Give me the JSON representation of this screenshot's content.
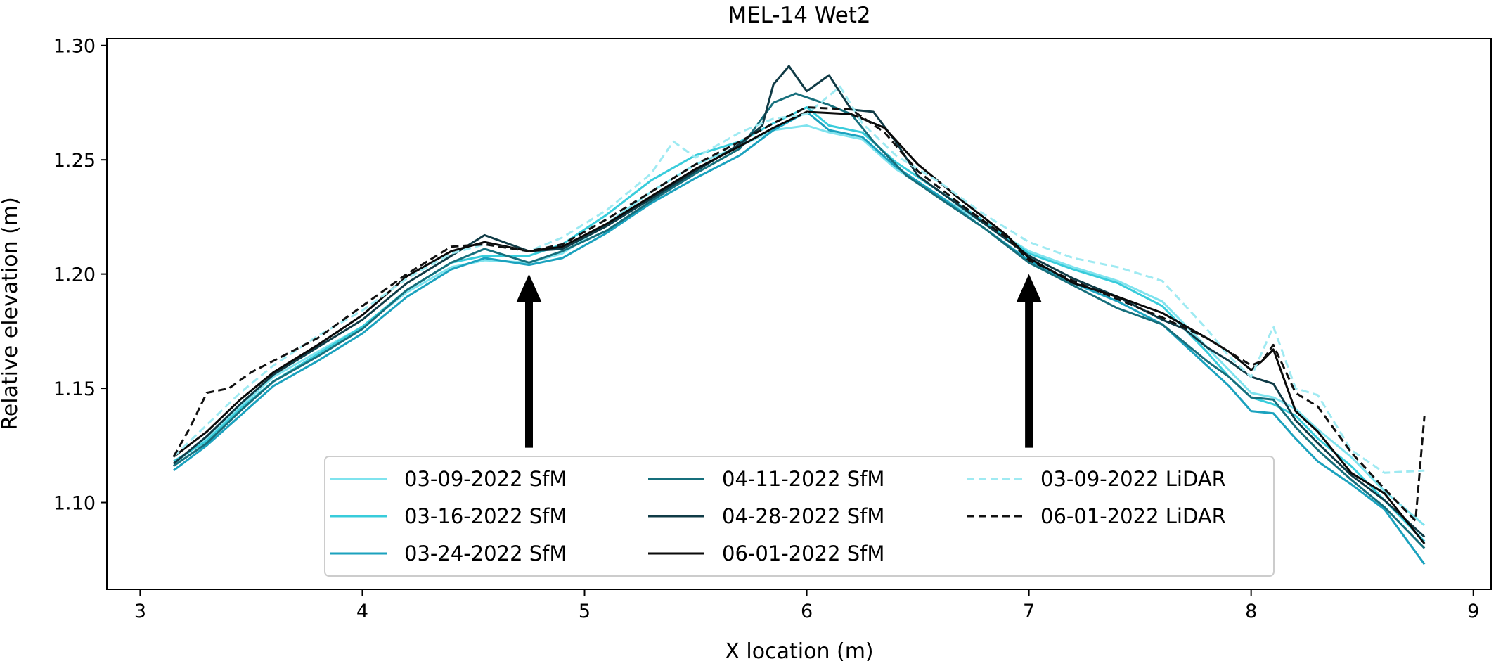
{
  "chart_data": {
    "type": "line",
    "title": "MEL-14 Wet2",
    "xlabel": "X location (m)",
    "ylabel": "Relative elevation (m)",
    "xlim": [
      2.85,
      9.08
    ],
    "ylim": [
      1.062,
      1.303
    ],
    "xticks": [
      3,
      4,
      5,
      6,
      7,
      8,
      9
    ],
    "yticks": [
      1.1,
      1.15,
      1.2,
      1.25,
      1.3
    ],
    "grid": false,
    "legend_position": "lower center",
    "legend_columns": 3,
    "annotations": [
      {
        "type": "arrow",
        "x": 4.75,
        "y_tail": 1.124,
        "y_head": 1.2
      },
      {
        "type": "arrow",
        "x": 7.0,
        "y_tail": 1.124,
        "y_head": 1.2
      }
    ],
    "series": [
      {
        "name": "03-09-2022 SfM",
        "color": "#7fe3ee",
        "style": "solid",
        "points": [
          [
            3.15,
            1.117
          ],
          [
            3.3,
            1.128
          ],
          [
            3.45,
            1.142
          ],
          [
            3.6,
            1.155
          ],
          [
            3.8,
            1.166
          ],
          [
            4.0,
            1.177
          ],
          [
            4.2,
            1.192
          ],
          [
            4.4,
            1.203
          ],
          [
            4.55,
            1.206
          ],
          [
            4.75,
            1.205
          ],
          [
            4.9,
            1.209
          ],
          [
            5.1,
            1.222
          ],
          [
            5.3,
            1.236
          ],
          [
            5.5,
            1.248
          ],
          [
            5.7,
            1.256
          ],
          [
            5.85,
            1.263
          ],
          [
            6.0,
            1.265
          ],
          [
            6.1,
            1.262
          ],
          [
            6.25,
            1.259
          ],
          [
            6.4,
            1.246
          ],
          [
            6.6,
            1.234
          ],
          [
            6.8,
            1.222
          ],
          [
            7.0,
            1.21
          ],
          [
            7.2,
            1.203
          ],
          [
            7.4,
            1.197
          ],
          [
            7.6,
            1.188
          ],
          [
            7.8,
            1.168
          ],
          [
            7.9,
            1.158
          ],
          [
            8.0,
            1.148
          ],
          [
            8.1,
            1.146
          ],
          [
            8.2,
            1.141
          ],
          [
            8.3,
            1.132
          ],
          [
            8.45,
            1.12
          ],
          [
            8.6,
            1.105
          ],
          [
            8.78,
            1.09
          ]
        ]
      },
      {
        "name": "03-16-2022 SfM",
        "color": "#38ccdb",
        "style": "solid",
        "points": [
          [
            3.15,
            1.118
          ],
          [
            3.3,
            1.127
          ],
          [
            3.45,
            1.141
          ],
          [
            3.6,
            1.153
          ],
          [
            3.8,
            1.165
          ],
          [
            4.0,
            1.177
          ],
          [
            4.2,
            1.193
          ],
          [
            4.4,
            1.205
          ],
          [
            4.55,
            1.208
          ],
          [
            4.75,
            1.208
          ],
          [
            4.9,
            1.213
          ],
          [
            5.1,
            1.226
          ],
          [
            5.3,
            1.241
          ],
          [
            5.5,
            1.252
          ],
          [
            5.7,
            1.258
          ],
          [
            5.85,
            1.266
          ],
          [
            6.0,
            1.273
          ],
          [
            6.1,
            1.265
          ],
          [
            6.25,
            1.262
          ],
          [
            6.4,
            1.249
          ],
          [
            6.6,
            1.236
          ],
          [
            6.8,
            1.223
          ],
          [
            7.0,
            1.209
          ],
          [
            7.2,
            1.202
          ],
          [
            7.4,
            1.196
          ],
          [
            7.6,
            1.186
          ],
          [
            7.8,
            1.166
          ],
          [
            7.9,
            1.155
          ],
          [
            8.0,
            1.146
          ],
          [
            8.1,
            1.143
          ],
          [
            8.2,
            1.138
          ],
          [
            8.3,
            1.128
          ],
          [
            8.45,
            1.116
          ],
          [
            8.6,
            1.101
          ],
          [
            8.78,
            1.083
          ]
        ]
      },
      {
        "name": "03-24-2022 SfM",
        "color": "#1ba2be",
        "style": "solid",
        "points": [
          [
            3.15,
            1.114
          ],
          [
            3.3,
            1.125
          ],
          [
            3.45,
            1.138
          ],
          [
            3.6,
            1.151
          ],
          [
            3.8,
            1.162
          ],
          [
            4.0,
            1.174
          ],
          [
            4.2,
            1.19
          ],
          [
            4.4,
            1.202
          ],
          [
            4.55,
            1.207
          ],
          [
            4.75,
            1.204
          ],
          [
            4.9,
            1.207
          ],
          [
            5.1,
            1.218
          ],
          [
            5.3,
            1.231
          ],
          [
            5.5,
            1.242
          ],
          [
            5.7,
            1.252
          ],
          [
            5.85,
            1.263
          ],
          [
            6.0,
            1.271
          ],
          [
            6.1,
            1.263
          ],
          [
            6.25,
            1.26
          ],
          [
            6.4,
            1.247
          ],
          [
            6.6,
            1.234
          ],
          [
            6.8,
            1.22
          ],
          [
            7.0,
            1.206
          ],
          [
            7.2,
            1.196
          ],
          [
            7.4,
            1.188
          ],
          [
            7.6,
            1.178
          ],
          [
            7.8,
            1.16
          ],
          [
            7.9,
            1.151
          ],
          [
            8.0,
            1.14
          ],
          [
            8.1,
            1.139
          ],
          [
            8.2,
            1.128
          ],
          [
            8.3,
            1.118
          ],
          [
            8.45,
            1.108
          ],
          [
            8.6,
            1.097
          ],
          [
            8.78,
            1.073
          ]
        ]
      },
      {
        "name": "04-11-2022 SfM",
        "color": "#166f7c",
        "style": "solid",
        "points": [
          [
            3.15,
            1.116
          ],
          [
            3.3,
            1.126
          ],
          [
            3.45,
            1.14
          ],
          [
            3.6,
            1.153
          ],
          [
            3.8,
            1.164
          ],
          [
            4.0,
            1.176
          ],
          [
            4.2,
            1.193
          ],
          [
            4.4,
            1.205
          ],
          [
            4.55,
            1.211
          ],
          [
            4.75,
            1.205
          ],
          [
            4.9,
            1.21
          ],
          [
            5.1,
            1.219
          ],
          [
            5.3,
            1.232
          ],
          [
            5.5,
            1.244
          ],
          [
            5.7,
            1.255
          ],
          [
            5.85,
            1.275
          ],
          [
            5.95,
            1.279
          ],
          [
            6.1,
            1.274
          ],
          [
            6.2,
            1.27
          ],
          [
            6.3,
            1.258
          ],
          [
            6.45,
            1.243
          ],
          [
            6.6,
            1.233
          ],
          [
            6.8,
            1.22
          ],
          [
            7.0,
            1.205
          ],
          [
            7.2,
            1.195
          ],
          [
            7.4,
            1.185
          ],
          [
            7.6,
            1.178
          ],
          [
            7.8,
            1.162
          ],
          [
            7.9,
            1.155
          ],
          [
            8.0,
            1.146
          ],
          [
            8.1,
            1.145
          ],
          [
            8.2,
            1.133
          ],
          [
            8.3,
            1.123
          ],
          [
            8.45,
            1.11
          ],
          [
            8.6,
            1.098
          ],
          [
            8.78,
            1.08
          ]
        ]
      },
      {
        "name": "04-28-2022 SfM",
        "color": "#103b46",
        "style": "solid",
        "points": [
          [
            3.15,
            1.117
          ],
          [
            3.3,
            1.129
          ],
          [
            3.45,
            1.143
          ],
          [
            3.6,
            1.156
          ],
          [
            3.8,
            1.168
          ],
          [
            4.0,
            1.18
          ],
          [
            4.2,
            1.196
          ],
          [
            4.4,
            1.208
          ],
          [
            4.55,
            1.217
          ],
          [
            4.75,
            1.21
          ],
          [
            4.9,
            1.211
          ],
          [
            5.1,
            1.221
          ],
          [
            5.3,
            1.233
          ],
          [
            5.5,
            1.245
          ],
          [
            5.7,
            1.257
          ],
          [
            5.8,
            1.265
          ],
          [
            5.85,
            1.283
          ],
          [
            5.92,
            1.291
          ],
          [
            6.0,
            1.28
          ],
          [
            6.1,
            1.287
          ],
          [
            6.2,
            1.272
          ],
          [
            6.3,
            1.271
          ],
          [
            6.4,
            1.258
          ],
          [
            6.5,
            1.243
          ],
          [
            6.6,
            1.236
          ],
          [
            6.8,
            1.222
          ],
          [
            7.0,
            1.208
          ],
          [
            7.2,
            1.198
          ],
          [
            7.4,
            1.19
          ],
          [
            7.6,
            1.18
          ],
          [
            7.7,
            1.176
          ],
          [
            7.8,
            1.168
          ],
          [
            7.9,
            1.162
          ],
          [
            8.0,
            1.155
          ],
          [
            8.1,
            1.152
          ],
          [
            8.2,
            1.136
          ],
          [
            8.3,
            1.126
          ],
          [
            8.45,
            1.112
          ],
          [
            8.6,
            1.101
          ],
          [
            8.78,
            1.085
          ]
        ]
      },
      {
        "name": "06-01-2022 SfM",
        "color": "#0a0a0a",
        "style": "solid",
        "points": [
          [
            3.15,
            1.12
          ],
          [
            3.3,
            1.131
          ],
          [
            3.45,
            1.145
          ],
          [
            3.6,
            1.157
          ],
          [
            3.8,
            1.169
          ],
          [
            4.0,
            1.182
          ],
          [
            4.2,
            1.199
          ],
          [
            4.4,
            1.21
          ],
          [
            4.55,
            1.214
          ],
          [
            4.75,
            1.21
          ],
          [
            4.9,
            1.212
          ],
          [
            5.1,
            1.222
          ],
          [
            5.3,
            1.234
          ],
          [
            5.5,
            1.246
          ],
          [
            5.7,
            1.256
          ],
          [
            5.85,
            1.264
          ],
          [
            6.0,
            1.271
          ],
          [
            6.2,
            1.27
          ],
          [
            6.35,
            1.264
          ],
          [
            6.5,
            1.248
          ],
          [
            6.7,
            1.232
          ],
          [
            6.9,
            1.217
          ],
          [
            7.0,
            1.207
          ],
          [
            7.2,
            1.196
          ],
          [
            7.4,
            1.19
          ],
          [
            7.6,
            1.183
          ],
          [
            7.8,
            1.172
          ],
          [
            7.9,
            1.166
          ],
          [
            8.0,
            1.158
          ],
          [
            8.05,
            1.162
          ],
          [
            8.1,
            1.167
          ],
          [
            8.2,
            1.14
          ],
          [
            8.3,
            1.131
          ],
          [
            8.45,
            1.113
          ],
          [
            8.6,
            1.104
          ],
          [
            8.78,
            1.082
          ]
        ]
      },
      {
        "name": "03-09-2022 LiDAR",
        "color": "#9feaf2",
        "style": "dashed",
        "points": [
          [
            3.15,
            1.12
          ],
          [
            3.3,
            1.134
          ],
          [
            3.45,
            1.148
          ],
          [
            3.6,
            1.16
          ],
          [
            3.8,
            1.173
          ],
          [
            4.0,
            1.184
          ],
          [
            4.2,
            1.198
          ],
          [
            4.4,
            1.209
          ],
          [
            4.55,
            1.213
          ],
          [
            4.75,
            1.21
          ],
          [
            4.9,
            1.216
          ],
          [
            5.1,
            1.228
          ],
          [
            5.3,
            1.244
          ],
          [
            5.4,
            1.258
          ],
          [
            5.5,
            1.251
          ],
          [
            5.7,
            1.262
          ],
          [
            5.85,
            1.268
          ],
          [
            6.0,
            1.27
          ],
          [
            6.15,
            1.282
          ],
          [
            6.25,
            1.266
          ],
          [
            6.4,
            1.252
          ],
          [
            6.6,
            1.24
          ],
          [
            6.8,
            1.226
          ],
          [
            7.0,
            1.214
          ],
          [
            7.2,
            1.207
          ],
          [
            7.4,
            1.203
          ],
          [
            7.6,
            1.197
          ],
          [
            7.8,
            1.176
          ],
          [
            7.9,
            1.164
          ],
          [
            8.0,
            1.155
          ],
          [
            8.1,
            1.177
          ],
          [
            8.2,
            1.15
          ],
          [
            8.3,
            1.147
          ],
          [
            8.45,
            1.123
          ],
          [
            8.6,
            1.113
          ],
          [
            8.78,
            1.114
          ]
        ]
      },
      {
        "name": "06-01-2022 LiDAR",
        "color": "#111111",
        "style": "dashed",
        "points": [
          [
            3.15,
            1.12
          ],
          [
            3.22,
            1.132
          ],
          [
            3.3,
            1.148
          ],
          [
            3.4,
            1.15
          ],
          [
            3.5,
            1.157
          ],
          [
            3.6,
            1.162
          ],
          [
            3.8,
            1.172
          ],
          [
            4.0,
            1.186
          ],
          [
            4.2,
            1.2
          ],
          [
            4.4,
            1.212
          ],
          [
            4.55,
            1.213
          ],
          [
            4.75,
            1.21
          ],
          [
            4.9,
            1.213
          ],
          [
            5.1,
            1.224
          ],
          [
            5.3,
            1.236
          ],
          [
            5.5,
            1.248
          ],
          [
            5.7,
            1.258
          ],
          [
            5.85,
            1.266
          ],
          [
            6.0,
            1.273
          ],
          [
            6.2,
            1.272
          ],
          [
            6.35,
            1.262
          ],
          [
            6.5,
            1.245
          ],
          [
            6.7,
            1.23
          ],
          [
            6.9,
            1.216
          ],
          [
            7.0,
            1.206
          ],
          [
            7.2,
            1.197
          ],
          [
            7.4,
            1.189
          ],
          [
            7.6,
            1.181
          ],
          [
            7.8,
            1.172
          ],
          [
            7.9,
            1.166
          ],
          [
            8.0,
            1.16
          ],
          [
            8.05,
            1.162
          ],
          [
            8.1,
            1.169
          ],
          [
            8.2,
            1.148
          ],
          [
            8.3,
            1.142
          ],
          [
            8.45,
            1.122
          ],
          [
            8.6,
            1.106
          ],
          [
            8.74,
            1.092
          ],
          [
            8.78,
            1.138
          ]
        ]
      }
    ]
  }
}
